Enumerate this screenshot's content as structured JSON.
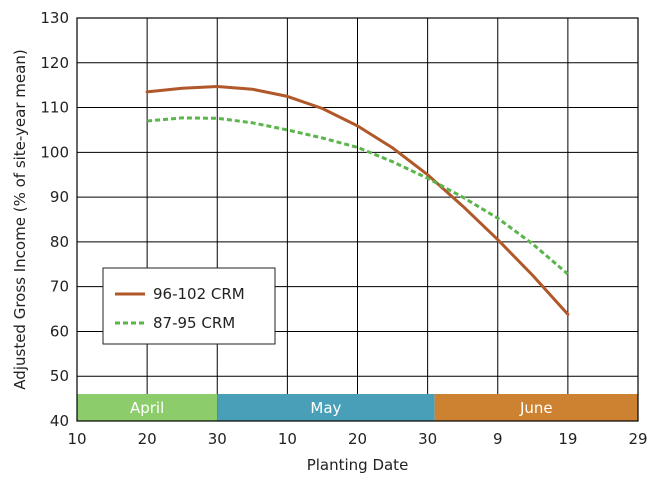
{
  "chart_data": {
    "type": "line",
    "title": "",
    "xlabel": "Planting Date",
    "ylabel": "Adjusted Gross Income (% of site-year mean)",
    "x_tick_labels": [
      "10",
      "20",
      "30",
      "10",
      "20",
      "30",
      "9",
      "19",
      "29"
    ],
    "xlim": [
      0,
      80
    ],
    "y_ticks": [
      40,
      50,
      60,
      70,
      80,
      90,
      100,
      110,
      120,
      130
    ],
    "ylim": [
      40,
      130
    ],
    "grid": true,
    "legend_position": "left",
    "months": [
      {
        "label": "April",
        "start": 0,
        "end": 20,
        "color": "#8ccc6a"
      },
      {
        "label": "May",
        "start": 20,
        "end": 51,
        "color": "#4a9fb8"
      },
      {
        "label": "June",
        "start": 51,
        "end": 80,
        "color": "#cc8231"
      }
    ],
    "series": [
      {
        "name": "96-102 CRM",
        "color": "#b0582a",
        "dash": "solid",
        "x": [
          10,
          15,
          20,
          25,
          30,
          35,
          40,
          45,
          50,
          55,
          60,
          65,
          70
        ],
        "y": [
          113.5,
          114.3,
          114.7,
          114.1,
          112.5,
          109.8,
          105.9,
          101.0,
          95.0,
          88.0,
          80.5,
          72.5,
          63.8
        ]
      },
      {
        "name": "87-95 CRM",
        "color": "#5ab54a",
        "dash": "dashed",
        "x": [
          10,
          15,
          20,
          25,
          30,
          35,
          40,
          45,
          50,
          55,
          60,
          65,
          70
        ],
        "y": [
          107.0,
          107.7,
          107.6,
          106.6,
          105.0,
          103.2,
          101.1,
          97.9,
          94.2,
          90.0,
          85.3,
          79.5,
          72.8
        ]
      }
    ]
  }
}
